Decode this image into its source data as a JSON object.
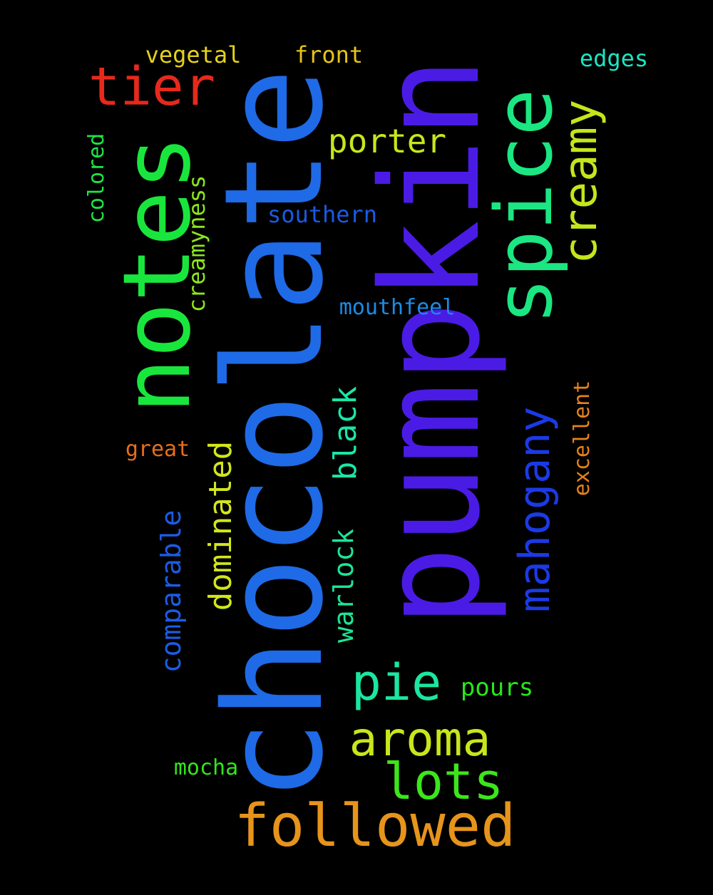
{
  "background": "#000000",
  "words": [
    {
      "key": "pumpkin",
      "text": "pumpkin",
      "color": "#4B1BE6"
    },
    {
      "key": "chocolate",
      "text": "chocolate",
      "color": "#1F6AE6"
    },
    {
      "key": "notes",
      "text": "notes",
      "color": "#19E63C"
    },
    {
      "key": "spice",
      "text": "spice",
      "color": "#1BE682"
    },
    {
      "key": "followed",
      "text": "followed",
      "color": "#E6941B"
    },
    {
      "key": "creamy",
      "text": "creamy",
      "color": "#C3E61B"
    },
    {
      "key": "tier",
      "text": "tier",
      "color": "#E6291B"
    },
    {
      "key": "aroma",
      "text": "aroma",
      "color": "#C8E61B"
    },
    {
      "key": "lots",
      "text": "lots",
      "color": "#3CE61B"
    },
    {
      "key": "pie",
      "text": "pie",
      "color": "#1BE6A0"
    },
    {
      "key": "mahogany",
      "text": "mahogany",
      "color": "#1B3AE6"
    },
    {
      "key": "porter",
      "text": "porter",
      "color": "#C8E61B"
    },
    {
      "key": "black",
      "text": "black",
      "color": "#1BE6A6"
    },
    {
      "key": "dominated",
      "text": "dominated",
      "color": "#D2E61B"
    },
    {
      "key": "warlock",
      "text": "warlock",
      "color": "#1BE696"
    },
    {
      "key": "comparable",
      "text": "comparable",
      "color": "#1B5CE6"
    },
    {
      "key": "creamyness",
      "text": "creamyness",
      "color": "#8CE61B"
    },
    {
      "key": "southern",
      "text": "southern",
      "color": "#1B5AE6"
    },
    {
      "key": "mouthfeel",
      "text": "mouthfeel",
      "color": "#1B8CE6"
    },
    {
      "key": "colored",
      "text": "colored",
      "color": "#1BE646"
    },
    {
      "key": "vegetal",
      "text": "vegetal",
      "color": "#E6D21B"
    },
    {
      "key": "front",
      "text": "front",
      "color": "#E6C31B"
    },
    {
      "key": "edges",
      "text": "edges",
      "color": "#1BE6C3"
    },
    {
      "key": "excellent",
      "text": "excellent",
      "color": "#E6821B"
    },
    {
      "key": "great",
      "text": "great",
      "color": "#E66E1B"
    },
    {
      "key": "pours",
      "text": "pours",
      "color": "#28E61B"
    },
    {
      "key": "mocha",
      "text": "mocha",
      "color": "#32E61B"
    }
  ]
}
